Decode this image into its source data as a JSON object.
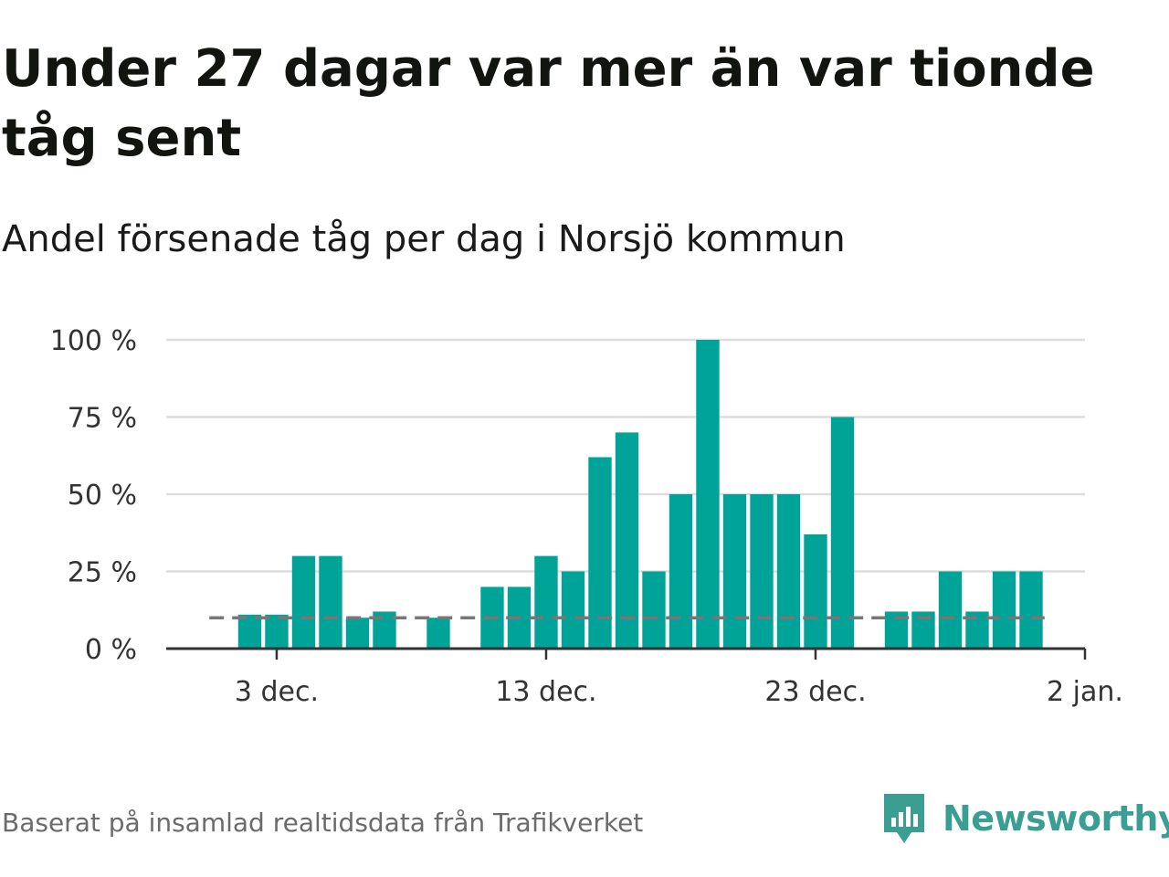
{
  "header": {
    "title": "Under 27 dagar var mer än var tionde tåg sent",
    "subtitle": "Andel försenade tåg per dag i Norsjö kommun"
  },
  "footer": {
    "source": "Baserat på insamlad realtidsdata från Trafikverket",
    "brand": "Newsworthy",
    "brand_icon": "newsworthy-logo-icon"
  },
  "colors": {
    "bar": "#00a398",
    "reference_line": "#777777",
    "grid": "#dddddd",
    "axis": "#333333",
    "brand": "#3a9e93"
  },
  "chart_data": {
    "type": "bar",
    "title": "Andel försenade tåg per dag i Norsjö kommun",
    "xlabel": "",
    "ylabel": "",
    "ylim": [
      0,
      100
    ],
    "yticks": [
      0,
      25,
      50,
      75,
      100
    ],
    "ytick_labels": [
      "0 %",
      "25 %",
      "50 %",
      "75 %",
      "100 %"
    ],
    "xlim_days": [
      -1.1,
      33
    ],
    "xticks": [
      {
        "day": 3,
        "label": "3 dec."
      },
      {
        "day": 13,
        "label": "13 dec."
      },
      {
        "day": 23,
        "label": "23 dec."
      },
      {
        "day": 33,
        "label": "2 jan."
      }
    ],
    "categories": [
      "2 dec.",
      "3 dec.",
      "4 dec.",
      "5 dec.",
      "6 dec.",
      "7 dec.",
      "8 dec.",
      "9 dec.",
      "10 dec.",
      "11 dec.",
      "12 dec.",
      "13 dec.",
      "14 dec.",
      "15 dec.",
      "16 dec.",
      "17 dec.",
      "18 dec.",
      "19 dec.",
      "20 dec.",
      "21 dec.",
      "22 dec.",
      "23 dec.",
      "24 dec.",
      "25 dec.",
      "26 dec.",
      "27 dec.",
      "28 dec.",
      "29 dec.",
      "30 dec.",
      "31 dec."
    ],
    "days": [
      2,
      3,
      4,
      5,
      6,
      7,
      8,
      9,
      10,
      11,
      12,
      13,
      14,
      15,
      16,
      17,
      18,
      19,
      20,
      21,
      22,
      23,
      24,
      25,
      26,
      27,
      28,
      29,
      30,
      31
    ],
    "values": [
      11,
      11,
      30,
      30,
      10,
      12,
      0,
      10,
      0,
      20,
      20,
      30,
      25,
      62,
      70,
      25,
      50,
      100,
      50,
      50,
      50,
      37,
      75,
      0,
      12,
      12,
      25,
      12,
      25,
      25
    ],
    "reference_line": {
      "value": 10,
      "from_day": 0.5,
      "to_day": 31.5,
      "style": "dashed"
    }
  }
}
